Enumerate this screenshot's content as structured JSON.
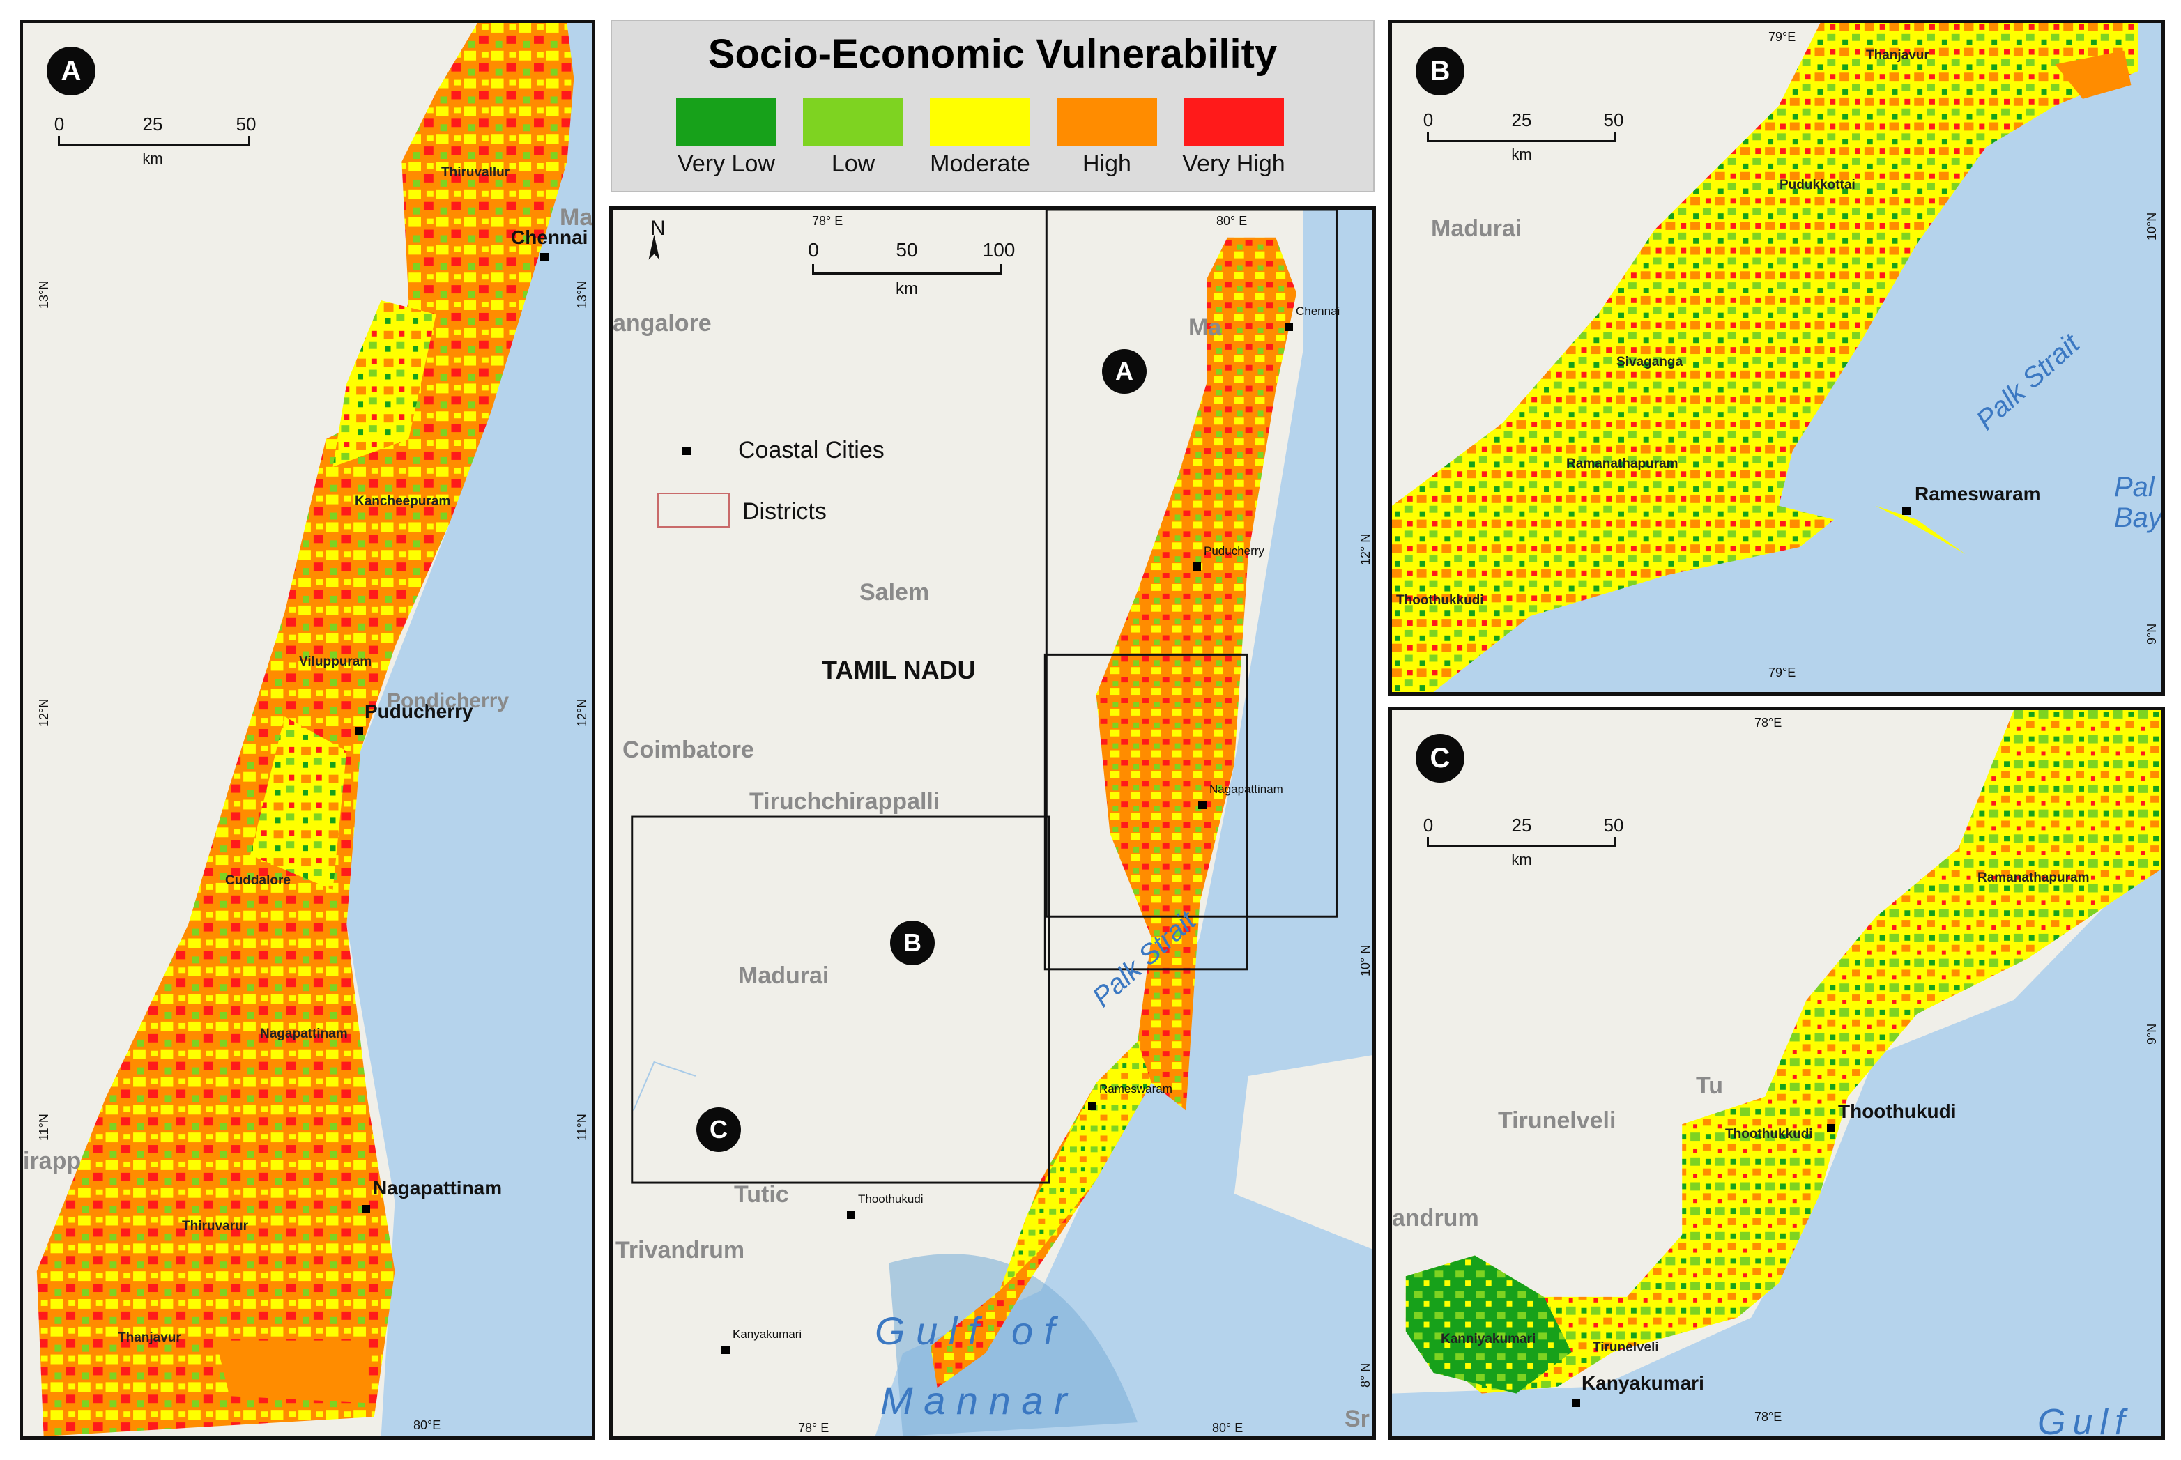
{
  "legend": {
    "title": "Socio-Economic Vulnerability",
    "classes": [
      {
        "label": "Very Low",
        "color": "#17a11a"
      },
      {
        "label": "Low",
        "color": "#7ed321"
      },
      {
        "label": "Moderate",
        "color": "#ffff00"
      },
      {
        "label": "High",
        "color": "#ff8c00"
      },
      {
        "label": "Very High",
        "color": "#ff1a1a"
      }
    ]
  },
  "colors": {
    "land": "#f0efe9",
    "sea": "#b5d3ec",
    "deep_sea": "#7fb0d9",
    "river": "#a9cbe8",
    "border": "#111111"
  },
  "panel_a": {
    "label": "A",
    "scale": {
      "ticks": [
        "0",
        "25",
        "50"
      ],
      "unit": "km"
    },
    "cities": {
      "chennai": "Chennai",
      "puducherry": "Puducherry",
      "nagapattinam": "Nagapattinam"
    },
    "districts": {
      "thiruvallur": "Thiruvallur",
      "kancheepuram": "Kancheepuram",
      "viluppuram": "Viluppuram",
      "cuddalore": "Cuddalore",
      "nagapattinam": "Nagapattinam",
      "thiruvarur": "Thiruvarur",
      "thanjavur": "Thanjavur"
    },
    "background": {
      "pondicherry": "Pondicherry",
      "tirapp": "irapp",
      "ma": "Ma"
    },
    "coords": {
      "lat13_left": "13°N",
      "lat13_right": "13°N",
      "lat12_left": "12°N",
      "lat12_right": "12°N",
      "lat11_left": "11°N",
      "lat11_right": "11°N",
      "lon80": "80°E"
    }
  },
  "panel_main": {
    "scale": {
      "ticks": [
        "0",
        "50",
        "100"
      ],
      "unit": "km"
    },
    "north": "N",
    "legend_items": {
      "cities": "Coastal Cities",
      "districts": "Districts"
    },
    "state": "TAMIL NADU",
    "background": {
      "bangalore": "angalore",
      "salem": "Salem",
      "coimbatore": "Coimbatore",
      "tiruchchirappalli": "Tiruchchirappalli",
      "madurai": "Madurai",
      "tutic": "Tutic",
      "trivandrum": "Trivandrum",
      "ma": "Ma",
      "sr": "Sr"
    },
    "cities": {
      "chennai": "Chennai",
      "puducherry": "Puducherry",
      "nagapattinam": "Nagapattinam",
      "rameswaram": "Rameswaram",
      "thoothukudi": "Thoothukudi",
      "kanyakumari": "Kanyakumari"
    },
    "sea": {
      "palk": "Palk Strait",
      "gulf": "G u l f   o f",
      "mannar": "M a n n a r"
    },
    "insets": {
      "a": "A",
      "b": "B",
      "c": "C"
    },
    "coords": {
      "lon78_top": "78° E",
      "lon80_top": "80° E",
      "lon78_bottom": "78° E",
      "lon80_bottom": "80° E",
      "lat12": "12° N",
      "lat10": "10° N",
      "lat8": "8° N"
    }
  },
  "panel_b": {
    "label": "B",
    "scale": {
      "ticks": [
        "0",
        "25",
        "50"
      ],
      "unit": "km"
    },
    "districts": {
      "thanjavur": "Thanjavur",
      "pudukkottai": "Pudukkottai",
      "sivaganga": "Sivaganga",
      "ramanathapuram": "Ramanathapuram",
      "thoothukkudi": "Thoothukkudi"
    },
    "cities": {
      "rameswaram": "Rameswaram"
    },
    "background": {
      "madurai": "Madurai"
    },
    "sea": {
      "palk": "Palk Strait",
      "bay": "Pal\nBay"
    },
    "coords": {
      "lon79_top": "79°E",
      "lon79_bottom": "79°E",
      "lat10": "10°N",
      "lat9": "9°N"
    }
  },
  "panel_c": {
    "label": "C",
    "scale": {
      "ticks": [
        "0",
        "25",
        "50"
      ],
      "unit": "km"
    },
    "districts": {
      "ramanathapuram": "Ramanathapuram",
      "thoothukkudi": "Thoothukkudi",
      "kanniyakumari": "Kanniyakumari",
      "tirunelveli": "Tirunelveli"
    },
    "cities": {
      "thoothukudi": "Thoothukudi",
      "kanyakumari": "Kanyakumari"
    },
    "background": {
      "tirunelveli": "Tirunelveli",
      "andrum": "andrum",
      "tu": "Tu"
    },
    "sea": {
      "gulf": "Gulf"
    },
    "coords": {
      "lon78_top": "78°E",
      "lon78_bottom": "78°E",
      "lat9": "9°N"
    }
  }
}
